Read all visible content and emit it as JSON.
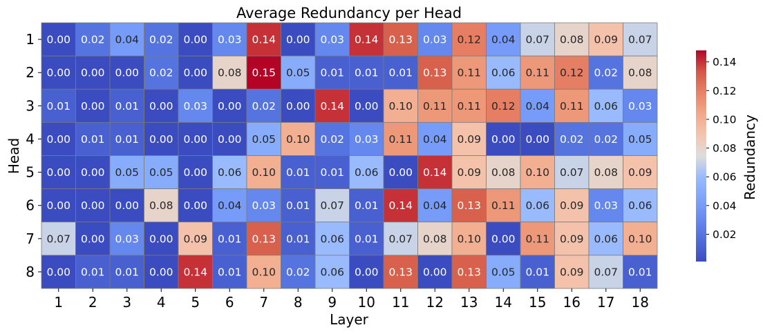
{
  "chart_data": {
    "type": "heatmap",
    "title": "Average Redundancy per Head",
    "xlabel": "Layer",
    "ylabel": "Head",
    "x_categories": [
      "1",
      "2",
      "3",
      "4",
      "5",
      "6",
      "7",
      "8",
      "9",
      "10",
      "11",
      "12",
      "13",
      "14",
      "15",
      "16",
      "17",
      "18"
    ],
    "y_categories": [
      "1",
      "2",
      "3",
      "4",
      "5",
      "6",
      "7",
      "8"
    ],
    "values": [
      [
        0.0,
        0.02,
        0.04,
        0.02,
        0.0,
        0.03,
        0.14,
        0.0,
        0.03,
        0.14,
        0.13,
        0.03,
        0.12,
        0.04,
        0.07,
        0.08,
        0.09,
        0.07
      ],
      [
        0.0,
        0.0,
        0.0,
        0.02,
        0.0,
        0.08,
        0.15,
        0.05,
        0.01,
        0.01,
        0.01,
        0.13,
        0.11,
        0.06,
        0.11,
        0.12,
        0.02,
        0.08
      ],
      [
        0.01,
        0.0,
        0.01,
        0.0,
        0.03,
        0.0,
        0.02,
        0.0,
        0.14,
        0.0,
        0.1,
        0.11,
        0.11,
        0.12,
        0.04,
        0.11,
        0.06,
        0.03
      ],
      [
        0.0,
        0.01,
        0.01,
        0.0,
        0.0,
        0.0,
        0.05,
        0.1,
        0.02,
        0.03,
        0.11,
        0.04,
        0.09,
        0.0,
        0.0,
        0.02,
        0.02,
        0.05
      ],
      [
        0.0,
        0.0,
        0.05,
        0.05,
        0.0,
        0.06,
        0.1,
        0.01,
        0.01,
        0.06,
        0.0,
        0.14,
        0.09,
        0.08,
        0.1,
        0.07,
        0.08,
        0.09
      ],
      [
        0.0,
        0.0,
        0.0,
        0.08,
        0.0,
        0.04,
        0.03,
        0.01,
        0.07,
        0.01,
        0.14,
        0.04,
        0.13,
        0.11,
        0.06,
        0.09,
        0.03,
        0.06
      ],
      [
        0.07,
        0.0,
        0.03,
        0.0,
        0.09,
        0.01,
        0.13,
        0.01,
        0.06,
        0.01,
        0.07,
        0.08,
        0.1,
        0.0,
        0.11,
        0.09,
        0.06,
        0.1
      ],
      [
        0.0,
        0.01,
        0.01,
        0.0,
        0.14,
        0.01,
        0.1,
        0.02,
        0.06,
        0.0,
        0.13,
        0.0,
        0.13,
        0.05,
        0.01,
        0.09,
        0.07,
        0.01
      ]
    ],
    "colorbar": {
      "label": "Redundancy",
      "ticks": [
        "0.02",
        "0.04",
        "0.06",
        "0.08",
        "0.10",
        "0.12",
        "0.14"
      ],
      "vmin": 0.001,
      "vmax": 0.148,
      "colormap": "coolwarm"
    }
  }
}
